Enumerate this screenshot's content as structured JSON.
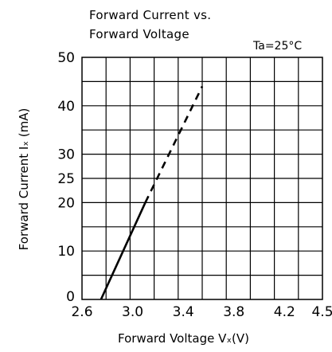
{
  "chart_data": {
    "type": "line",
    "title_line1": "Forward Current vs.",
    "title_line2": "Forward Voltage",
    "condition": "Ta=25°C",
    "xlabel": "Forward Voltage  Vₓ(V)",
    "ylabel": "Forward Current   Iₓ (mA)",
    "xlim": [
      2.6,
      4.5
    ],
    "ylim": [
      0,
      50
    ],
    "x_ticks": [
      2.6,
      3.0,
      3.4,
      3.8,
      4.2,
      4.5
    ],
    "x_tick_labels": [
      "2.6",
      "3.0",
      "3.4",
      "3.8",
      "4.2",
      "4.5"
    ],
    "y_ticks": [
      0,
      10,
      20,
      25,
      30,
      40,
      50
    ],
    "y_tick_labels": [
      "0",
      "10",
      "20",
      "25",
      "30",
      "40",
      "50"
    ],
    "grid": true,
    "series": [
      {
        "style": "solid",
        "x": [
          2.75,
          3.1
        ],
        "y": [
          0,
          20
        ]
      },
      {
        "style": "dashed",
        "x": [
          3.1,
          3.55
        ],
        "y": [
          20,
          44
        ]
      }
    ]
  }
}
